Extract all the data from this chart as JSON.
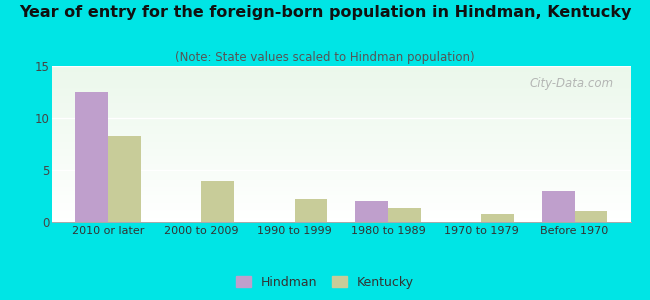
{
  "categories": [
    "2010 or later",
    "2000 to 2009",
    "1990 to 1999",
    "1980 to 1989",
    "1970 to 1979",
    "Before 1970"
  ],
  "hindman_values": [
    12.5,
    0,
    0,
    2.0,
    0,
    3.0
  ],
  "kentucky_values": [
    8.3,
    3.9,
    2.2,
    1.3,
    0.8,
    1.1
  ],
  "hindman_color": "#bf9fcc",
  "kentucky_color": "#c8cc99",
  "title": "Year of entry for the foreign-born population in Hindman, Kentucky",
  "subtitle": "(Note: State values scaled to Hindman population)",
  "title_fontsize": 11.5,
  "subtitle_fontsize": 8.5,
  "ylim": [
    0,
    15
  ],
  "yticks": [
    0,
    5,
    10,
    15
  ],
  "background_color": "#00e5e5",
  "bar_width": 0.35,
  "legend_hindman": "Hindman",
  "legend_kentucky": "Kentucky",
  "watermark": "City-Data.com"
}
